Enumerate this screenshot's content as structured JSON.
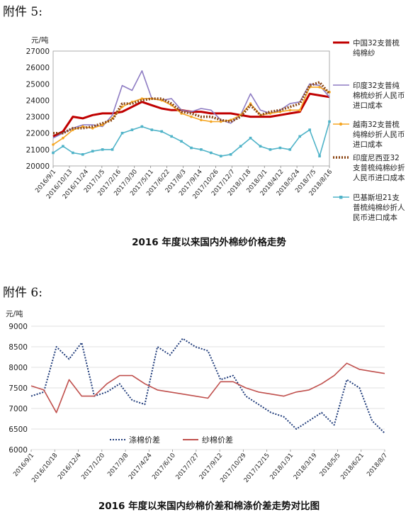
{
  "attachments": {
    "a5": "附件 5:",
    "a6": "附件 6:"
  },
  "chart_data": [
    {
      "type": "line",
      "title": "2016 年度以来国内外棉纱价格走势",
      "ylabel": "元/吨",
      "ylim": [
        20000,
        27000
      ],
      "yticks": [
        "27000",
        "26000",
        "25000",
        "24000",
        "23000",
        "22000",
        "21000",
        "20000"
      ],
      "xticks": [
        "2016/9/1",
        "2016/10/13",
        "2016/11/24",
        "2017/1/5",
        "2017/2/16",
        "2017/3/30",
        "2017/5/11",
        "2017/6/22",
        "2017/8/3",
        "2017/9/14",
        "2017/10/26",
        "2017/12/7",
        "2018/1/18",
        "2018/3/1",
        "2018/4/12",
        "2018/5/24",
        "2018/7/5",
        "2018/8/16"
      ],
      "legend_position": "right",
      "series": [
        {
          "name": "中国32支普梳纯棉纱",
          "color": "#c00000",
          "style": "solid-thick",
          "values": [
            21800,
            22100,
            23000,
            22900,
            23100,
            23200,
            23200,
            23300,
            23600,
            23900,
            23700,
            23500,
            23400,
            23400,
            23300,
            23300,
            23200,
            23200,
            23200,
            23100,
            23000,
            23000,
            23000,
            23100,
            23200,
            23300,
            24400,
            24300,
            24200
          ]
        },
        {
          "name": "印度32支普纯棉梳纱折人民币进口成本",
          "color": "#8e7cc3",
          "style": "solid",
          "values": [
            21700,
            22000,
            22300,
            22500,
            22500,
            22400,
            23100,
            24900,
            24600,
            25800,
            24100,
            24000,
            24100,
            23400,
            23300,
            23500,
            23400,
            22800,
            22600,
            23100,
            24400,
            23400,
            23200,
            23400,
            23800,
            23900,
            25000,
            24900,
            24200
          ]
        },
        {
          "name": "越南32支普梳纯棉纱折人民币进口成本",
          "color": "#f5a623",
          "style": "dot-marker",
          "values": [
            21300,
            21700,
            22200,
            22400,
            22300,
            22500,
            22900,
            23600,
            23900,
            24100,
            24100,
            24000,
            23700,
            23200,
            23000,
            22800,
            22700,
            22700,
            22800,
            23100,
            23800,
            23100,
            23200,
            23300,
            23400,
            23400,
            24800,
            24800,
            24500
          ]
        },
        {
          "name": "印度尼西亚32支普梳纯棉纱折人民币进口成本",
          "color": "#8b4513",
          "style": "dotted-thick",
          "values": [
            22000,
            22000,
            22300,
            22300,
            22400,
            22600,
            22800,
            23800,
            23800,
            24000,
            24100,
            24100,
            23800,
            23300,
            23200,
            23000,
            23000,
            22800,
            22700,
            23000,
            23700,
            23100,
            23300,
            23400,
            23600,
            23800,
            24900,
            25100,
            24400
          ]
        },
        {
          "name": "巴基斯坦21支普梳纯棉纱折人民币进口成本",
          "color": "#4fb3c8",
          "style": "square-marker",
          "values": [
            20800,
            21200,
            20800,
            20700,
            20900,
            21000,
            21000,
            22000,
            22200,
            22400,
            22200,
            22100,
            21800,
            21500,
            21100,
            21000,
            20800,
            20600,
            20700,
            21200,
            21700,
            21200,
            21000,
            21100,
            21000,
            21800,
            22200,
            20600,
            22700
          ]
        }
      ]
    },
    {
      "type": "line",
      "title": "2016 年度以来国内纱棉价差和棉涤价差走势对比图",
      "ylabel": "元/吨",
      "ylim": [
        6000,
        9000
      ],
      "yticks": [
        "9000",
        "8500",
        "8000",
        "7500",
        "7000",
        "6500",
        "6000"
      ],
      "xticks": [
        "2016/9/1",
        "2016/10/18",
        "2016/12/4",
        "2017/1/20",
        "2017/3/8",
        "2017/4/24",
        "2017/6/10",
        "2017/7/27",
        "2017/9/12",
        "2017/10/29",
        "2017/12/15",
        "2018/1/31",
        "2018/3/19",
        "2018/5/5",
        "2018/6/21",
        "2018/8/7"
      ],
      "legend_position": "bottom-left",
      "series": [
        {
          "name": "涤棉价差",
          "color": "#1f3b7a",
          "style": "dotted",
          "values": [
            7300,
            7400,
            8500,
            8200,
            8600,
            7300,
            7400,
            7600,
            7200,
            7100,
            8500,
            8300,
            8700,
            8500,
            8400,
            7700,
            7800,
            7300,
            7100,
            6900,
            6800,
            6500,
            6700,
            6900,
            6600,
            7700,
            7500,
            6700,
            6400
          ]
        },
        {
          "name": "纱棉价差",
          "color": "#c0504d",
          "style": "solid",
          "values": [
            7550,
            7450,
            6900,
            7700,
            7300,
            7300,
            7600,
            7800,
            7800,
            7600,
            7450,
            7400,
            7350,
            7300,
            7250,
            7650,
            7650,
            7500,
            7400,
            7350,
            7300,
            7400,
            7450,
            7600,
            7800,
            8100,
            7950,
            7900,
            7850
          ]
        }
      ]
    }
  ]
}
